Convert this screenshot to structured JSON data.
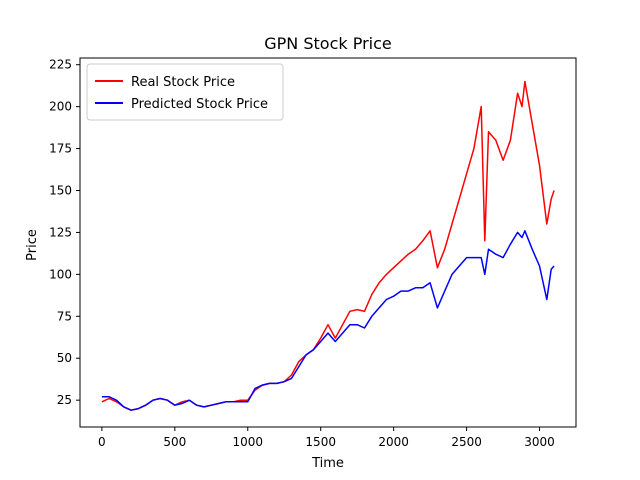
{
  "chart_data": {
    "type": "line",
    "title": "GPN Stock Price",
    "xlabel": "Time",
    "ylabel": "Price",
    "xlim": [
      -150,
      3250
    ],
    "ylim": [
      9,
      229
    ],
    "xticks": [
      0,
      500,
      1000,
      1500,
      2000,
      2500,
      3000
    ],
    "yticks": [
      25,
      50,
      75,
      100,
      125,
      150,
      175,
      200,
      225
    ],
    "grid": false,
    "legend": "top-left",
    "series": [
      {
        "name": "Real Stock Price",
        "color": "#ff0000",
        "x": [
          0,
          50,
          100,
          150,
          200,
          250,
          300,
          350,
          400,
          450,
          500,
          550,
          600,
          650,
          700,
          750,
          800,
          850,
          900,
          950,
          1000,
          1050,
          1100,
          1150,
          1200,
          1250,
          1300,
          1350,
          1400,
          1450,
          1500,
          1550,
          1600,
          1650,
          1700,
          1750,
          1800,
          1850,
          1900,
          1950,
          2000,
          2050,
          2100,
          2150,
          2200,
          2250,
          2300,
          2350,
          2400,
          2450,
          2500,
          2550,
          2600,
          2625,
          2650,
          2700,
          2750,
          2800,
          2850,
          2880,
          2900,
          2950,
          3000,
          3050,
          3080,
          3100
        ],
        "values": [
          24,
          26,
          24,
          21,
          19,
          20,
          22,
          25,
          26,
          25,
          22,
          24,
          25,
          22,
          21,
          22,
          23,
          24,
          24,
          25,
          25,
          31,
          34,
          35,
          35,
          36,
          40,
          48,
          52,
          55,
          62,
          70,
          62,
          70,
          78,
          79,
          78,
          88,
          95,
          100,
          104,
          108,
          112,
          115,
          120,
          126,
          104,
          115,
          130,
          145,
          160,
          175,
          200,
          120,
          185,
          180,
          168,
          180,
          208,
          200,
          215,
          190,
          165,
          130,
          145,
          150
        ]
      },
      {
        "name": "Predicted Stock Price",
        "color": "#0000ff",
        "x": [
          0,
          50,
          100,
          150,
          200,
          250,
          300,
          350,
          400,
          450,
          500,
          550,
          600,
          650,
          700,
          750,
          800,
          850,
          900,
          950,
          1000,
          1050,
          1100,
          1150,
          1200,
          1250,
          1300,
          1350,
          1400,
          1450,
          1500,
          1550,
          1600,
          1650,
          1700,
          1750,
          1800,
          1850,
          1900,
          1950,
          2000,
          2050,
          2100,
          2150,
          2200,
          2250,
          2300,
          2350,
          2400,
          2450,
          2500,
          2550,
          2600,
          2625,
          2650,
          2700,
          2750,
          2800,
          2850,
          2880,
          2900,
          2950,
          3000,
          3050,
          3080,
          3100
        ],
        "values": [
          27,
          27,
          25,
          21,
          19,
          20,
          22,
          25,
          26,
          25,
          22,
          23,
          25,
          22,
          21,
          22,
          23,
          24,
          24,
          24,
          24,
          32,
          34,
          35,
          35,
          36,
          38,
          45,
          52,
          55,
          60,
          65,
          60,
          65,
          70,
          70,
          68,
          75,
          80,
          85,
          87,
          90,
          90,
          92,
          92,
          95,
          80,
          90,
          100,
          105,
          110,
          110,
          110,
          100,
          115,
          112,
          110,
          118,
          125,
          122,
          126,
          115,
          105,
          85,
          103,
          105
        ]
      }
    ]
  }
}
